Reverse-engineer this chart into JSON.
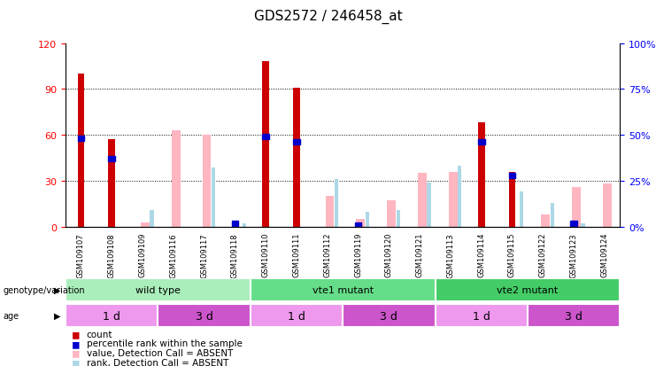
{
  "title": "GDS2572 / 246458_at",
  "samples": [
    "GSM109107",
    "GSM109108",
    "GSM109109",
    "GSM109116",
    "GSM109117",
    "GSM109118",
    "GSM109110",
    "GSM109111",
    "GSM109112",
    "GSM109119",
    "GSM109120",
    "GSM109121",
    "GSM109113",
    "GSM109114",
    "GSM109115",
    "GSM109122",
    "GSM109123",
    "GSM109124"
  ],
  "count": [
    100,
    57,
    0,
    0,
    0,
    0,
    108,
    91,
    0,
    0,
    0,
    0,
    0,
    68,
    36,
    0,
    0,
    0
  ],
  "percentile_rank": [
    48,
    37,
    0,
    0,
    0,
    2,
    49,
    46,
    0,
    1,
    0,
    0,
    0,
    46,
    28,
    0,
    2,
    0
  ],
  "absent_value": [
    0,
    0,
    3,
    63,
    60,
    0,
    0,
    0,
    20,
    5,
    17,
    35,
    36,
    0,
    0,
    8,
    26,
    28
  ],
  "absent_rank": [
    0,
    0,
    9,
    0,
    32,
    2,
    0,
    0,
    26,
    8,
    9,
    24,
    33,
    0,
    19,
    13,
    2,
    0
  ],
  "ylim_left": [
    0,
    120
  ],
  "ylim_right": [
    0,
    100
  ],
  "yticks_left": [
    0,
    30,
    60,
    90,
    120
  ],
  "yticks_right": [
    0,
    25,
    50,
    75,
    100
  ],
  "ytick_labels_left": [
    "0",
    "30",
    "60",
    "90",
    "120"
  ],
  "ytick_labels_right": [
    "0%",
    "25%",
    "50%",
    "75%",
    "100%"
  ],
  "genotype_groups": [
    {
      "label": "wild type",
      "start": 0,
      "end": 6,
      "color": "#aaeebb"
    },
    {
      "label": "vte1 mutant",
      "start": 6,
      "end": 12,
      "color": "#66dd88"
    },
    {
      "label": "vte2 mutant",
      "start": 12,
      "end": 18,
      "color": "#44cc66"
    }
  ],
  "age_groups": [
    {
      "label": "1 d",
      "start": 0,
      "end": 3,
      "color": "#ee99ee"
    },
    {
      "label": "3 d",
      "start": 3,
      "end": 6,
      "color": "#cc55cc"
    },
    {
      "label": "1 d",
      "start": 6,
      "end": 9,
      "color": "#ee99ee"
    },
    {
      "label": "3 d",
      "start": 9,
      "end": 12,
      "color": "#cc55cc"
    },
    {
      "label": "1 d",
      "start": 12,
      "end": 15,
      "color": "#ee99ee"
    },
    {
      "label": "3 d",
      "start": 15,
      "end": 18,
      "color": "#cc55cc"
    }
  ],
  "count_color": "#cc0000",
  "rank_color": "#0000cc",
  "absent_value_color": "#ffb6c1",
  "absent_rank_color": "#add8e6",
  "legend_items": [
    {
      "label": "count",
      "color": "#cc0000"
    },
    {
      "label": "percentile rank within the sample",
      "color": "#0000cc"
    },
    {
      "label": "value, Detection Call = ABSENT",
      "color": "#ffb6c1"
    },
    {
      "label": "rank, Detection Call = ABSENT",
      "color": "#add8e6"
    }
  ]
}
